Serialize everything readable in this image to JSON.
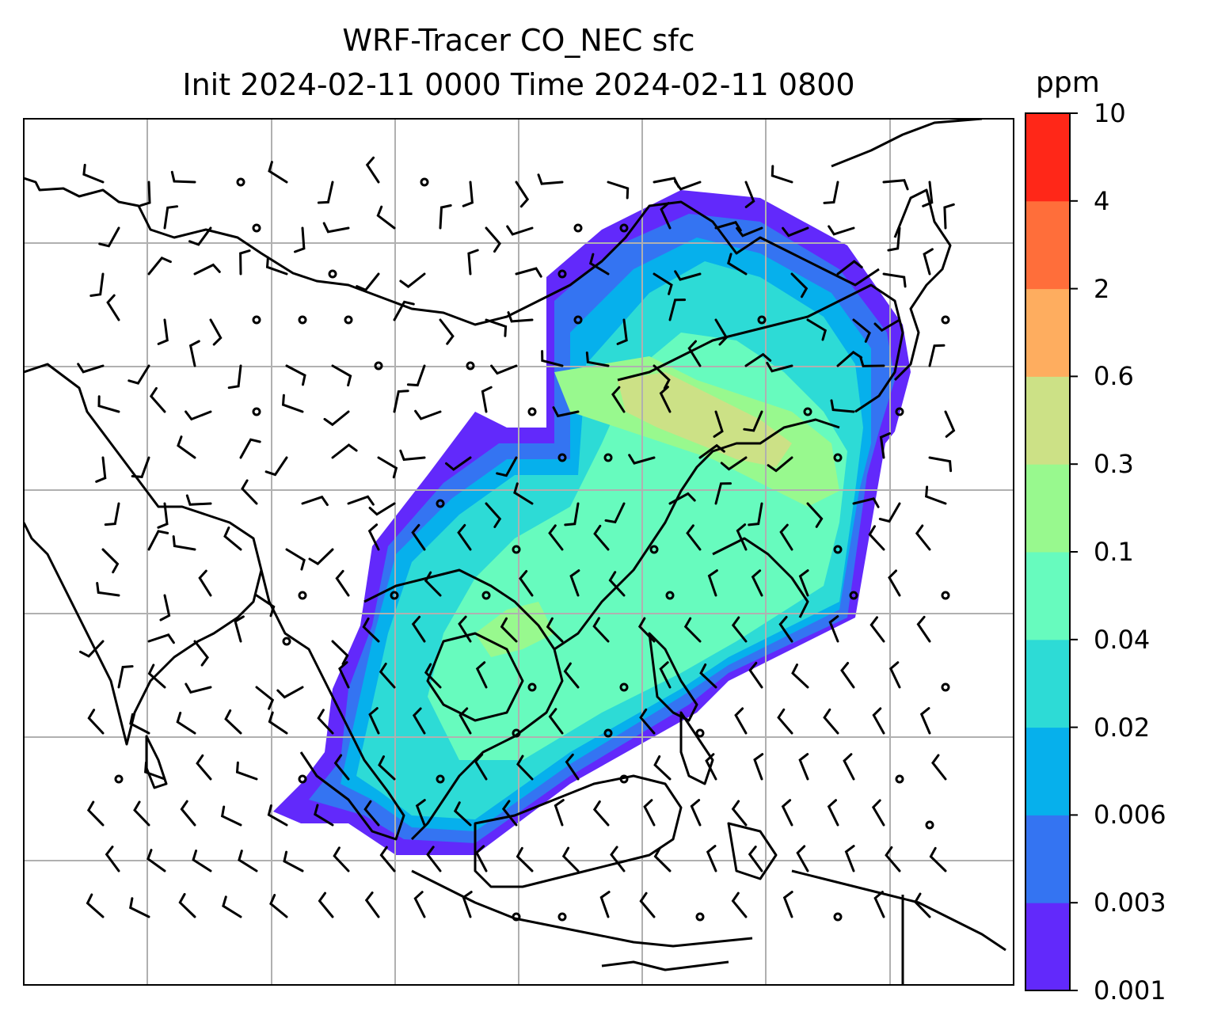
{
  "title_line1": "WRF-Tracer CO_NEC sfc",
  "title_line2": "Init 2024-02-11 0000 Time 2024-02-11 0800",
  "colorbar": {
    "unit": "ppm",
    "levels": [
      "0.001",
      "0.003",
      "0.006",
      "0.02",
      "0.04",
      "0.1",
      "0.3",
      "0.6",
      "2",
      "4",
      "10"
    ],
    "colors": [
      "#6229fb",
      "#3474f2",
      "#06b0ec",
      "#2ddbd6",
      "#67fbbe",
      "#98f98e",
      "#cce186",
      "#fead5f",
      "#ff6e3a",
      "#ff2718"
    ]
  },
  "chart_data": {
    "type": "map",
    "map_content": "CO_NEC tracer surface concentration field with wind barbs",
    "gridlines": true,
    "colorbar_position": "right"
  }
}
